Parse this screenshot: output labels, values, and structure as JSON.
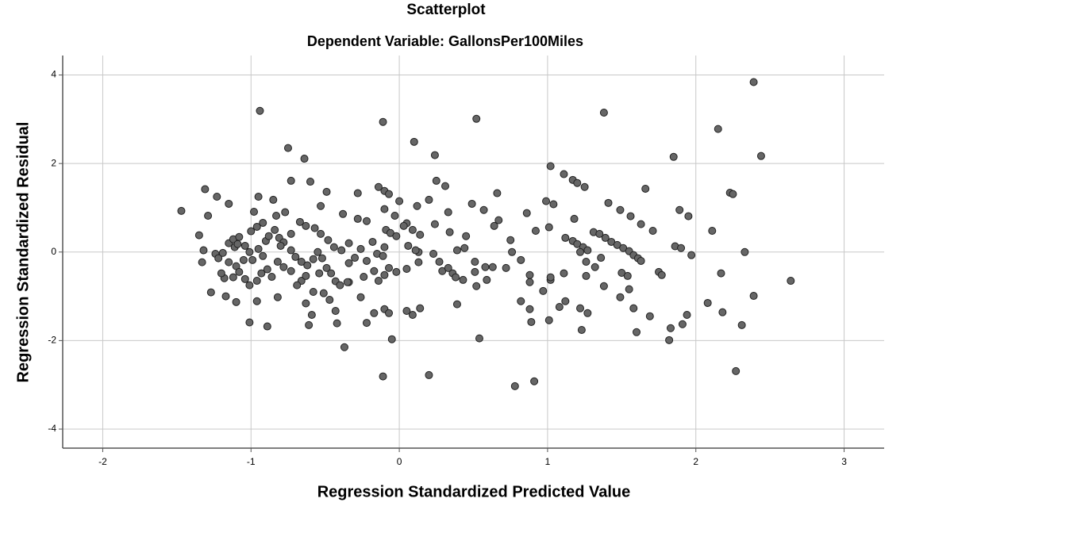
{
  "chart_data": {
    "type": "scatter",
    "title": "Scatterplot",
    "subtitle": "Dependent Variable: GallonsPer100Miles",
    "x_label": "Regression Standardized Predicted Value",
    "y_label": "Regression Standardized Residual",
    "color": "#666666",
    "grid": true,
    "xlim": [
      -2.27,
      3.27
    ],
    "ylim": [
      -4.43,
      4.44
    ],
    "xticks": [
      -2,
      -1,
      0,
      1,
      2,
      3
    ],
    "yticks": [
      -4,
      -2,
      0,
      2,
      4
    ],
    "x": [
      -1.47,
      -1.35,
      -1.31,
      -1.29,
      -1.23,
      -1.15,
      -1.32,
      -1.27,
      -1.18,
      -1.17,
      -1.1,
      -1.01,
      -0.94,
      -0.75,
      -0.64,
      -0.95,
      -0.73,
      -0.6,
      -0.49,
      -0.53,
      -0.73,
      -0.98,
      -0.85,
      -0.9,
      -0.89,
      -0.96,
      -0.82,
      -0.66,
      -0.61,
      -0.59,
      -0.63,
      -0.42,
      -0.37,
      -0.43,
      -0.34,
      -0.28,
      -0.38,
      -0.28,
      -0.14,
      -0.1,
      -0.07,
      -0.11,
      0.1,
      0.24,
      0.52,
      0.25,
      0.31,
      0.2,
      0.12,
      0.0,
      -0.03,
      -0.1,
      -0.22,
      -0.18,
      0.05,
      0.09,
      0.14,
      0.24,
      0.33,
      0.49,
      0.57,
      0.66,
      0.67,
      0.64,
      0.75,
      0.76,
      0.82,
      0.72,
      0.63,
      0.58,
      0.51,
      0.44,
      0.39,
      0.34,
      0.45,
      0.29,
      0.36,
      0.38,
      0.43,
      0.51,
      0.13,
      0.13,
      0.05,
      -0.02,
      -0.1,
      -0.14,
      -0.24,
      -0.26,
      -0.17,
      -0.1,
      -0.07,
      -0.22,
      -0.05,
      -0.11,
      0.2,
      0.05,
      0.09,
      0.14,
      0.39,
      0.54,
      0.52,
      0.59,
      0.78,
      0.82,
      0.88,
      0.89,
      0.88,
      0.88,
      0.97,
      0.86,
      0.92,
      1.02,
      0.99,
      1.04,
      1.01,
      1.11,
      1.17,
      1.2,
      1.25,
      1.18,
      1.12,
      1.17,
      1.2,
      1.24,
      1.27,
      1.22,
      1.31,
      1.35,
      1.39,
      1.43,
      1.47,
      1.51,
      1.55,
      1.58,
      1.61,
      1.63,
      1.38,
      1.41,
      1.49,
      1.56,
      1.63,
      1.66,
      1.71,
      1.26,
      1.26,
      1.32,
      1.36,
      1.38,
      1.49,
      1.5,
      1.54,
      1.55,
      1.58,
      1.6,
      1.69,
      1.75,
      1.77,
      1.82,
      1.83,
      1.85,
      1.86,
      1.89,
      1.9,
      1.95,
      1.97,
      1.91,
      1.94,
      2.08,
      2.11,
      2.15,
      2.17,
      2.18,
      2.23,
      2.25,
      2.27,
      2.31,
      2.33,
      2.39,
      2.39,
      2.44,
      2.64,
      0.91,
      1.01,
      1.08,
      1.12,
      1.22,
      1.23,
      1.27,
      1.11,
      1.02,
      1.02,
      -1.33,
      -1.24,
      -1.22,
      -1.19,
      -1.15,
      -1.12,
      -1.11,
      -1.08,
      -1.04,
      -1.01,
      -0.99,
      -1.05,
      -1.1,
      -1.15,
      -1.2,
      -1.12,
      -1.08,
      -1.04,
      -1.01,
      -0.96,
      -0.93,
      -0.89,
      -0.86,
      -0.82,
      -0.92,
      -0.95,
      -0.88,
      -0.84,
      -0.81,
      -0.78,
      -0.8,
      -0.73,
      -0.7,
      -0.66,
      -0.62,
      -0.58,
      -0.55,
      -0.52,
      -0.49,
      -0.46,
      -0.43,
      -0.4,
      -0.35,
      -0.34,
      -0.3,
      -0.39,
      -0.44,
      -0.48,
      -0.53,
      -0.57,
      -0.63,
      -0.67,
      -0.77,
      -0.83,
      -0.92,
      -0.96,
      -1.0,
      -1.09,
      -0.69,
      -0.73,
      -0.78,
      -0.58,
      -0.51,
      -0.47,
      -0.54,
      -0.63,
      -0.34,
      -0.26,
      -0.22,
      -0.15,
      -0.1,
      -0.09,
      -0.06,
      -0.02,
      0.03,
      0.06,
      0.11,
      -0.11,
      -0.07,
      -0.17,
      0.23,
      0.27,
      0.33
    ],
    "values": [
      0.93,
      0.38,
      1.42,
      0.82,
      1.25,
      1.09,
      0.04,
      -0.91,
      -0.59,
      -1.0,
      -1.13,
      -1.59,
      3.19,
      2.35,
      2.11,
      1.25,
      1.61,
      1.59,
      1.36,
      1.04,
      0.41,
      0.91,
      1.18,
      0.25,
      -1.68,
      -1.11,
      -1.02,
      -0.65,
      -1.65,
      -1.42,
      -1.16,
      -1.61,
      -2.15,
      -1.33,
      -0.68,
      0.75,
      0.86,
      1.33,
      1.47,
      1.38,
      1.31,
      2.94,
      2.49,
      2.19,
      3.01,
      1.61,
      1.49,
      1.18,
      1.04,
      1.15,
      0.82,
      0.97,
      0.7,
      0.23,
      0.65,
      0.5,
      0.39,
      0.63,
      0.9,
      1.09,
      0.95,
      1.33,
      0.72,
      0.59,
      0.27,
      0.0,
      -0.18,
      -0.36,
      -0.34,
      -0.34,
      -0.22,
      0.09,
      0.04,
      0.45,
      0.36,
      -0.43,
      -0.48,
      -0.57,
      -0.63,
      -0.45,
      -0.23,
      0.0,
      -0.38,
      -0.45,
      -0.52,
      -0.65,
      -0.56,
      -1.02,
      -1.38,
      -1.29,
      -1.38,
      -1.6,
      -1.97,
      -2.81,
      -2.78,
      -1.33,
      -1.42,
      -1.27,
      -1.18,
      -1.95,
      -0.77,
      -0.63,
      -3.03,
      -1.11,
      -1.29,
      -1.58,
      -0.68,
      -0.52,
      -0.88,
      0.88,
      0.48,
      1.94,
      1.15,
      1.08,
      0.56,
      1.76,
      1.63,
      1.56,
      1.47,
      0.75,
      0.32,
      0.25,
      0.18,
      0.11,
      0.04,
      0.0,
      0.45,
      0.41,
      0.32,
      0.23,
      0.16,
      0.09,
      0.02,
      -0.07,
      -0.14,
      -0.2,
      3.15,
      1.11,
      0.95,
      0.81,
      0.63,
      1.43,
      0.48,
      -0.22,
      -0.54,
      -0.34,
      -0.13,
      -0.77,
      -1.02,
      -0.47,
      -0.54,
      -0.84,
      -1.27,
      -1.81,
      -1.45,
      -0.45,
      -0.52,
      -1.99,
      -1.72,
      2.15,
      0.13,
      0.95,
      0.09,
      0.81,
      -0.07,
      -1.63,
      -1.42,
      -1.15,
      0.48,
      2.78,
      -0.48,
      -1.36,
      1.34,
      1.31,
      -2.69,
      -1.65,
      0.0,
      3.84,
      -0.99,
      2.17,
      -0.65,
      -2.92,
      -1.54,
      -1.24,
      -1.11,
      -1.27,
      -1.76,
      -1.38,
      -0.48,
      -0.63,
      -0.57,
      -0.23,
      -0.04,
      -0.14,
      -0.02,
      0.2,
      0.29,
      0.11,
      0.34,
      0.14,
      0.0,
      -0.18,
      -0.18,
      -0.32,
      -0.23,
      -0.48,
      -0.57,
      -0.45,
      -0.61,
      -0.75,
      -0.65,
      -0.48,
      -0.39,
      -0.56,
      -0.22,
      -0.09,
      0.07,
      0.36,
      0.5,
      0.32,
      0.22,
      0.14,
      0.04,
      -0.11,
      -0.22,
      -0.3,
      -0.16,
      0.0,
      -0.14,
      -0.36,
      -0.48,
      -0.66,
      -0.75,
      -0.68,
      -0.25,
      -0.13,
      0.04,
      0.11,
      0.27,
      0.41,
      0.54,
      0.59,
      0.68,
      0.9,
      0.82,
      0.66,
      0.57,
      0.47,
      0.18,
      -0.75,
      -0.43,
      -0.34,
      -0.9,
      -0.93,
      -1.08,
      -0.48,
      -0.54,
      0.2,
      0.07,
      -0.2,
      -0.04,
      0.11,
      0.5,
      0.43,
      0.36,
      0.59,
      0.14,
      0.04,
      -0.09,
      -0.36,
      -0.43,
      -0.04,
      -0.22,
      -0.36
    ]
  }
}
